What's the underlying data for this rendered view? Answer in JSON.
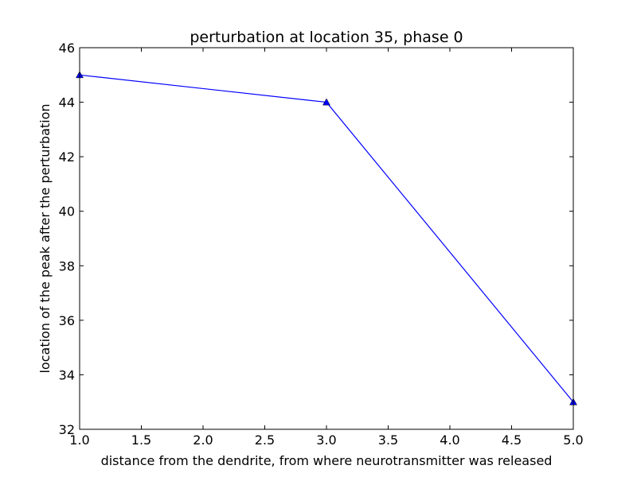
{
  "chart_data": {
    "type": "line",
    "title": "perturbation at location 35, phase 0",
    "xlabel": "distance from the dendrite, from where neurotransmitter was released",
    "ylabel": "location of the peak after the perturbation",
    "xlim": [
      1.0,
      5.0
    ],
    "ylim": [
      32,
      46
    ],
    "xticks": [
      "1.0",
      "1.5",
      "2.0",
      "2.5",
      "3.0",
      "3.5",
      "4.0",
      "4.5",
      "5.0"
    ],
    "yticks": [
      "32",
      "34",
      "36",
      "38",
      "40",
      "42",
      "44",
      "46"
    ],
    "grid": false,
    "series": [
      {
        "color": "#0000ff",
        "marker": "triangle-up",
        "x": [
          1,
          3,
          5
        ],
        "y": [
          45,
          44,
          33
        ]
      }
    ]
  }
}
